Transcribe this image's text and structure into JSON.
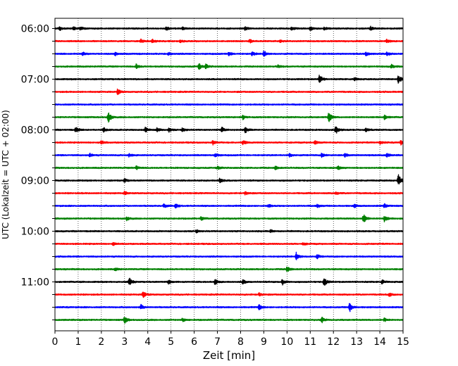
{
  "chart_data": {
    "type": "line",
    "title": "",
    "xlabel": "Zeit  [min]",
    "ylabel": "UTC (Lokalzeit = UTC + 02:00)",
    "xlim": [
      0,
      15
    ],
    "x_ticks": [
      0,
      1,
      2,
      3,
      4,
      5,
      6,
      7,
      8,
      9,
      10,
      11,
      12,
      13,
      14,
      15
    ],
    "y_tick_labels": [
      "06:00",
      "07:00",
      "08:00",
      "09:00",
      "10:00",
      "11:00"
    ],
    "x_grid": "dotted",
    "line_colors": [
      "#000000",
      "#ff0000",
      "#0000ff",
      "#008000"
    ],
    "traces": [
      {
        "start": "06:00",
        "color": "#000000",
        "events": [
          [
            0.2,
            3
          ],
          [
            0.8,
            2.5
          ],
          [
            1.1,
            2.5
          ],
          [
            4.8,
            2.5
          ],
          [
            5.5,
            2
          ],
          [
            8.2,
            2.5
          ],
          [
            10.2,
            2.5
          ],
          [
            11.0,
            3
          ],
          [
            11.6,
            2.5
          ],
          [
            13.6,
            2.5
          ]
        ]
      },
      {
        "start": "06:15",
        "color": "#ff0000",
        "events": [
          [
            3.7,
            2.5
          ],
          [
            4.2,
            2.5
          ],
          [
            5.4,
            2
          ],
          [
            8.4,
            2.5
          ],
          [
            9.7,
            2
          ],
          [
            14.3,
            3
          ]
        ]
      },
      {
        "start": "06:30",
        "color": "#0000ff",
        "events": [
          [
            1.2,
            2.5
          ],
          [
            2.6,
            2.5
          ],
          [
            4.9,
            2
          ],
          [
            7.5,
            3
          ],
          [
            8.5,
            3
          ],
          [
            9.0,
            5
          ],
          [
            13.4,
            3
          ],
          [
            14.3,
            2.5
          ]
        ]
      },
      {
        "start": "06:45",
        "color": "#008000",
        "events": [
          [
            3.5,
            3.5
          ],
          [
            6.2,
            5
          ],
          [
            6.5,
            3
          ],
          [
            9.6,
            2
          ],
          [
            14.5,
            2.5
          ]
        ]
      },
      {
        "start": "07:00",
        "color": "#000000",
        "events": [
          [
            11.4,
            6.5
          ],
          [
            12.9,
            2.5
          ],
          [
            14.8,
            6
          ]
        ]
      },
      {
        "start": "07:15",
        "color": "#ff0000",
        "events": [
          [
            2.7,
            4
          ]
        ]
      },
      {
        "start": "07:30",
        "color": "#0000ff",
        "events": []
      },
      {
        "start": "07:45",
        "color": "#008000",
        "events": [
          [
            2.3,
            8
          ],
          [
            8.1,
            3
          ],
          [
            11.8,
            8
          ],
          [
            14.2,
            3
          ]
        ]
      },
      {
        "start": "08:00",
        "color": "#000000",
        "events": [
          [
            0.9,
            4
          ],
          [
            2.1,
            3
          ],
          [
            3.9,
            4
          ],
          [
            4.4,
            3
          ],
          [
            4.9,
            3
          ],
          [
            5.5,
            3
          ],
          [
            7.2,
            3.5
          ],
          [
            8.2,
            4
          ],
          [
            12.1,
            6
          ],
          [
            13.4,
            2.5
          ]
        ]
      },
      {
        "start": "08:15",
        "color": "#ff0000",
        "events": [
          [
            2.0,
            2.5
          ],
          [
            6.8,
            3
          ],
          [
            8.1,
            3
          ],
          [
            11.2,
            2.5
          ],
          [
            14.0,
            2.5
          ],
          [
            14.9,
            3
          ]
        ]
      },
      {
        "start": "08:30",
        "color": "#0000ff",
        "events": [
          [
            1.5,
            2.5
          ],
          [
            3.2,
            2.5
          ],
          [
            6.9,
            3.5
          ],
          [
            10.1,
            2.5
          ],
          [
            11.5,
            3
          ],
          [
            12.5,
            2.5
          ],
          [
            14.3,
            2.5
          ]
        ]
      },
      {
        "start": "08:45",
        "color": "#008000",
        "events": [
          [
            3.5,
            3
          ],
          [
            7.0,
            2.5
          ],
          [
            9.5,
            2.5
          ],
          [
            12.2,
            2.5
          ]
        ]
      },
      {
        "start": "09:00",
        "color": "#000000",
        "events": [
          [
            3.0,
            2.5
          ],
          [
            7.1,
            3.5
          ],
          [
            14.8,
            9
          ]
        ]
      },
      {
        "start": "09:15",
        "color": "#ff0000",
        "events": [
          [
            3.0,
            2.5
          ],
          [
            8.2,
            2.5
          ],
          [
            12.1,
            2
          ]
        ]
      },
      {
        "start": "09:30",
        "color": "#0000ff",
        "events": [
          [
            4.7,
            3
          ],
          [
            5.2,
            3
          ],
          [
            9.2,
            2.5
          ],
          [
            11.3,
            2.5
          ],
          [
            12.9,
            2.5
          ],
          [
            14.2,
            3
          ]
        ]
      },
      {
        "start": "09:45",
        "color": "#008000",
        "events": [
          [
            3.1,
            2.5
          ],
          [
            6.3,
            2.5
          ],
          [
            13.3,
            7
          ],
          [
            14.2,
            4.5
          ]
        ]
      },
      {
        "start": "10:00",
        "color": "#000000",
        "events": [
          [
            6.1,
            2
          ],
          [
            9.3,
            2
          ]
        ]
      },
      {
        "start": "10:15",
        "color": "#ff0000",
        "events": [
          [
            2.5,
            2
          ],
          [
            10.7,
            2
          ]
        ]
      },
      {
        "start": "10:30",
        "color": "#0000ff",
        "events": [
          [
            10.4,
            6
          ],
          [
            11.3,
            3
          ]
        ]
      },
      {
        "start": "10:45",
        "color": "#008000",
        "events": [
          [
            2.6,
            2
          ],
          [
            10.0,
            4
          ]
        ]
      },
      {
        "start": "11:00",
        "color": "#000000",
        "events": [
          [
            3.2,
            6
          ],
          [
            4.9,
            3
          ],
          [
            6.9,
            4
          ],
          [
            8.1,
            3
          ],
          [
            9.8,
            4
          ],
          [
            11.6,
            6
          ],
          [
            14.1,
            3
          ]
        ]
      },
      {
        "start": "11:15",
        "color": "#ff0000",
        "events": [
          [
            3.8,
            5
          ],
          [
            8.8,
            2.5
          ],
          [
            14.4,
            2.5
          ]
        ]
      },
      {
        "start": "11:30",
        "color": "#0000ff",
        "events": [
          [
            3.7,
            3.5
          ],
          [
            8.8,
            4
          ],
          [
            12.7,
            7
          ]
        ]
      },
      {
        "start": "11:45",
        "color": "#008000",
        "events": [
          [
            3.0,
            5
          ],
          [
            5.5,
            2.5
          ],
          [
            11.5,
            4
          ],
          [
            14.2,
            2.5
          ]
        ]
      }
    ]
  }
}
